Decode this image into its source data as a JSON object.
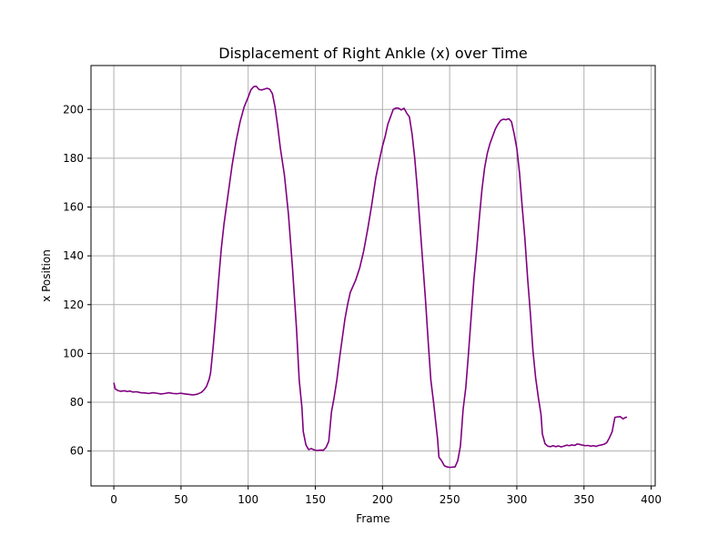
{
  "chart_data": {
    "type": "line",
    "title": "Displacement of Right Ankle (x) over Time",
    "xlabel": "Frame",
    "ylabel": "x Position",
    "xlim": [
      -17,
      403
    ],
    "ylim": [
      45.7,
      218
    ],
    "xticks": [
      0,
      50,
      100,
      150,
      200,
      250,
      300,
      350,
      400
    ],
    "yticks": [
      60,
      80,
      100,
      120,
      140,
      160,
      180,
      200
    ],
    "grid": true,
    "legend": "none",
    "series": [
      {
        "color": "#800080",
        "points": [
          [
            0,
            88
          ],
          [
            1,
            85.5
          ],
          [
            3,
            84.8
          ],
          [
            5,
            84.5
          ],
          [
            8,
            84.7
          ],
          [
            10,
            84.4
          ],
          [
            12,
            84.6
          ],
          [
            14,
            84.2
          ],
          [
            17,
            84.3
          ],
          [
            20,
            83.9
          ],
          [
            23,
            83.8
          ],
          [
            26,
            83.6
          ],
          [
            29,
            83.9
          ],
          [
            32,
            83.7
          ],
          [
            35,
            83.4
          ],
          [
            38,
            83.6
          ],
          [
            41,
            83.9
          ],
          [
            44,
            83.6
          ],
          [
            47,
            83.5
          ],
          [
            50,
            83.7
          ],
          [
            53,
            83.4
          ],
          [
            56,
            83.2
          ],
          [
            59,
            83.0
          ],
          [
            62,
            83.3
          ],
          [
            65,
            84.0
          ],
          [
            67,
            85.0
          ],
          [
            69,
            86.5
          ],
          [
            71,
            89.5
          ],
          [
            72,
            92
          ],
          [
            74,
            103
          ],
          [
            76,
            116
          ],
          [
            78,
            130
          ],
          [
            80,
            143
          ],
          [
            82,
            153
          ],
          [
            85,
            165
          ],
          [
            88,
            177
          ],
          [
            91,
            187
          ],
          [
            94,
            195
          ],
          [
            97,
            201
          ],
          [
            100,
            205
          ],
          [
            102,
            208
          ],
          [
            104,
            209.3
          ],
          [
            106,
            209.5
          ],
          [
            108,
            208.2
          ],
          [
            110,
            208.0
          ],
          [
            112,
            208.3
          ],
          [
            114,
            208.7
          ],
          [
            116,
            208.3
          ],
          [
            118,
            206.5
          ],
          [
            120,
            201
          ],
          [
            122,
            193
          ],
          [
            124,
            184
          ],
          [
            127,
            173
          ],
          [
            130,
            157
          ],
          [
            133,
            135
          ],
          [
            136,
            110
          ],
          [
            138,
            89
          ],
          [
            140,
            78
          ],
          [
            141,
            68
          ],
          [
            143,
            62.5
          ],
          [
            145,
            60.6
          ],
          [
            147,
            61
          ],
          [
            149,
            60.5
          ],
          [
            151,
            60.2
          ],
          [
            154,
            60.4
          ],
          [
            156,
            60.3
          ],
          [
            158,
            61.5
          ],
          [
            160,
            64
          ],
          [
            162,
            76
          ],
          [
            164,
            82
          ],
          [
            166,
            89
          ],
          [
            168,
            98
          ],
          [
            170,
            106
          ],
          [
            172,
            114
          ],
          [
            174,
            120
          ],
          [
            176,
            125
          ],
          [
            180,
            130
          ],
          [
            183,
            135
          ],
          [
            186,
            142
          ],
          [
            189,
            151
          ],
          [
            192,
            161
          ],
          [
            195,
            172
          ],
          [
            198,
            180
          ],
          [
            200,
            185
          ],
          [
            202,
            189
          ],
          [
            204,
            194
          ],
          [
            206,
            197
          ],
          [
            208,
            200
          ],
          [
            210,
            200.6
          ],
          [
            212,
            200.5
          ],
          [
            214,
            199.8
          ],
          [
            216,
            200.5
          ],
          [
            218,
            198.5
          ],
          [
            220,
            197
          ],
          [
            222,
            190
          ],
          [
            224,
            180
          ],
          [
            226,
            167
          ],
          [
            228,
            152
          ],
          [
            230,
            137
          ],
          [
            232,
            122
          ],
          [
            234,
            105
          ],
          [
            236,
            89
          ],
          [
            238,
            80
          ],
          [
            240,
            70
          ],
          [
            241,
            65
          ],
          [
            242,
            57.5
          ],
          [
            244,
            56
          ],
          [
            246,
            54
          ],
          [
            248,
            53.5
          ],
          [
            250,
            53.3
          ],
          [
            252,
            53.4
          ],
          [
            254,
            53.5
          ],
          [
            256,
            56
          ],
          [
            258,
            62
          ],
          [
            260,
            77
          ],
          [
            262,
            86
          ],
          [
            264,
            100
          ],
          [
            266,
            115
          ],
          [
            268,
            130
          ],
          [
            270,
            142
          ],
          [
            272,
            155
          ],
          [
            274,
            167
          ],
          [
            276,
            176
          ],
          [
            278,
            182
          ],
          [
            280,
            186
          ],
          [
            282,
            189
          ],
          [
            284,
            192
          ],
          [
            286,
            194
          ],
          [
            288,
            195.5
          ],
          [
            290,
            196
          ],
          [
            292,
            195.8
          ],
          [
            294,
            196.2
          ],
          [
            296,
            195
          ],
          [
            298,
            190
          ],
          [
            300,
            184
          ],
          [
            302,
            174
          ],
          [
            304,
            160
          ],
          [
            306,
            147
          ],
          [
            308,
            131
          ],
          [
            310,
            117
          ],
          [
            312,
            101
          ],
          [
            314,
            90
          ],
          [
            316,
            82
          ],
          [
            318,
            75
          ],
          [
            319,
            67
          ],
          [
            321,
            63
          ],
          [
            323,
            62
          ],
          [
            325,
            61.8
          ],
          [
            327,
            62.2
          ],
          [
            329,
            61.8
          ],
          [
            331,
            62.1
          ],
          [
            333,
            61.7
          ],
          [
            335,
            62
          ],
          [
            337,
            62.4
          ],
          [
            339,
            62.2
          ],
          [
            341,
            62.5
          ],
          [
            343,
            62.3
          ],
          [
            345,
            62.9
          ],
          [
            347,
            62.7
          ],
          [
            349,
            62.4
          ],
          [
            351,
            62.2
          ],
          [
            353,
            62.3
          ],
          [
            355,
            62.0
          ],
          [
            357,
            62.2
          ],
          [
            359,
            61.9
          ],
          [
            361,
            62.3
          ],
          [
            363,
            62.5
          ],
          [
            365,
            62.8
          ],
          [
            367,
            63.5
          ],
          [
            369,
            65.5
          ],
          [
            371,
            68
          ],
          [
            372,
            71
          ],
          [
            373,
            73.8
          ],
          [
            375,
            74
          ],
          [
            377,
            74.1
          ],
          [
            379,
            73.2
          ],
          [
            381,
            73.8
          ],
          [
            382,
            73.9
          ]
        ]
      }
    ]
  }
}
